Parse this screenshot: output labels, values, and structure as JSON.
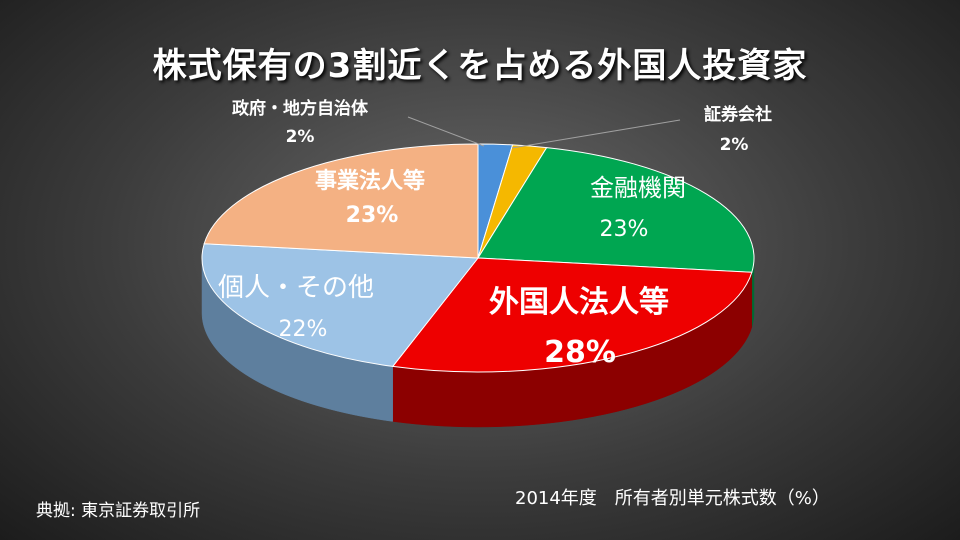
{
  "title": "株式保有の3割近くを占める外国人投資家",
  "source": "典拠: 東京証券取引所",
  "caption": "2014年度　所有者別単元株式数（%）",
  "chart_data": {
    "type": "pie",
    "unit": "%",
    "slices": [
      {
        "label": "政府・地方自治体",
        "value": 2,
        "display": "2%",
        "color": "#4a90d9",
        "side": "#2f5f91"
      },
      {
        "label": "証券会社",
        "value": 2,
        "display": "2%",
        "color": "#f5b800",
        "side": "#a87d00"
      },
      {
        "label": "金融機関",
        "value": 23,
        "display": "23%",
        "color": "#00a651",
        "side": "#006b34"
      },
      {
        "label": "外国人法人等",
        "value": 28,
        "display": "28%",
        "color": "#ee0000",
        "side": "#8c0000"
      },
      {
        "label": "個人・その他",
        "value": 22,
        "display": "22%",
        "color": "#9dc3e6",
        "side": "#5e7f9e"
      },
      {
        "label": "事業法人等",
        "value": 23,
        "display": "23%",
        "color": "#f4b183",
        "side": "#a9724e"
      }
    ]
  }
}
